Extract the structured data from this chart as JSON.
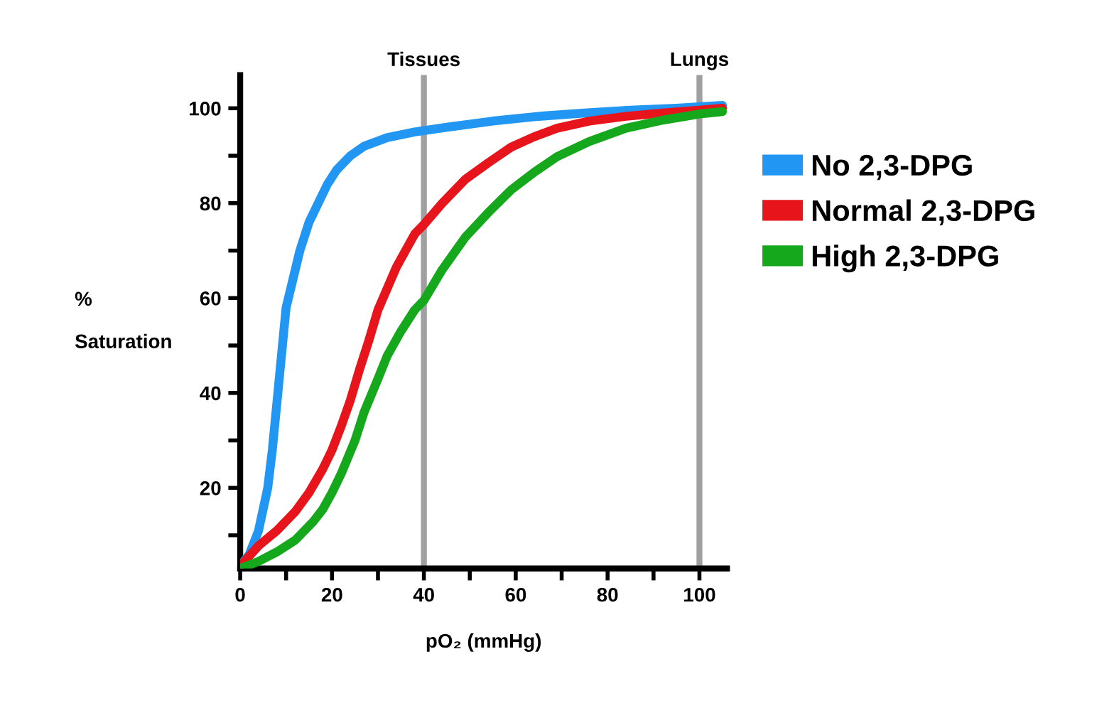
{
  "chart_data": {
    "type": "line",
    "xlabel": "pO₂ (mmHg)",
    "ylabel": "%\n\nSaturation",
    "xlim": [
      0,
      106
    ],
    "ylim": [
      3,
      107
    ],
    "xticks": [
      0,
      {
        "value": 10,
        "label": null
      },
      20,
      {
        "value": 30,
        "label": null
      },
      40,
      {
        "value": 50,
        "label": null
      },
      60,
      {
        "value": 70,
        "label": null
      },
      80,
      {
        "value": 90,
        "label": null
      },
      100
    ],
    "yticks": [
      {
        "value": 10,
        "label": null
      },
      20,
      {
        "value": 30,
        "label": null
      },
      40,
      {
        "value": 50,
        "label": null
      },
      60,
      {
        "value": 70,
        "label": null
      },
      80,
      {
        "value": 90,
        "label": null
      },
      100
    ],
    "series": [
      {
        "name": "No 2,3-DPG",
        "color": "#2196f3",
        "x": [
          0,
          2,
          4,
          6,
          7,
          8.5,
          10,
          12,
          13,
          15,
          17,
          19,
          21,
          24,
          27,
          32,
          38,
          45,
          55,
          65,
          75,
          85,
          95,
          100,
          105
        ],
        "values": [
          3.5,
          6,
          11,
          20,
          28,
          43,
          58,
          66,
          70,
          76,
          80,
          84,
          87,
          90,
          92,
          93.8,
          95,
          96,
          97.3,
          98.3,
          99,
          99.6,
          100,
          100.3,
          100.6
        ]
      },
      {
        "name": "Normal 2,3-DPG",
        "color": "#e8141b",
        "x": [
          0,
          4,
          8,
          12,
          15,
          18,
          20,
          22,
          24,
          26,
          28,
          30,
          32,
          34,
          36,
          38,
          40,
          44,
          49,
          54,
          59,
          64,
          69,
          76,
          84,
          92,
          100,
          105
        ],
        "values": [
          3.5,
          7.8,
          11,
          15,
          19,
          24,
          28,
          33,
          38.5,
          45,
          51,
          57.5,
          62,
          66.5,
          70,
          73.5,
          75.5,
          80,
          85,
          88.5,
          91.8,
          94,
          95.8,
          97.3,
          98.3,
          99,
          99.6,
          100
        ]
      },
      {
        "name": "High 2,3-DPG",
        "color": "#16a81c",
        "x": [
          0,
          4,
          8,
          12,
          16,
          18,
          20,
          22,
          25,
          27,
          30,
          32,
          35,
          38,
          40,
          44,
          49,
          54,
          59,
          64,
          69,
          76,
          84,
          92,
          100,
          105
        ],
        "values": [
          3,
          4.5,
          6.5,
          9,
          13,
          15.5,
          19,
          23,
          30,
          36,
          43,
          47.8,
          53,
          57.5,
          59.5,
          66,
          72.8,
          78,
          82.8,
          86.5,
          89.8,
          93,
          95.8,
          97.5,
          98.8,
          99.3
        ]
      }
    ],
    "ref_lines": [
      {
        "axis": "x",
        "value": 40,
        "label": "Tissues",
        "color": "#a0a0a0"
      },
      {
        "axis": "x",
        "value": 100,
        "label": "Lungs",
        "color": "#a0a0a0"
      }
    ],
    "legend": "right",
    "grid": false,
    "marker": "none",
    "line_style": "solid"
  }
}
